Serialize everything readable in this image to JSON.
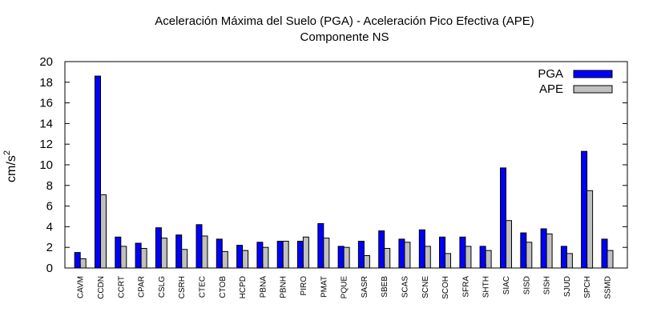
{
  "chart_data": {
    "type": "bar",
    "title": "Aceleración Máxima del Suelo (PGA) -  Aceleración Pico Efectiva (APE)",
    "subtitle": "Componente NS",
    "xlabel": "",
    "ylabel_base": "cm/s",
    "ylabel_exp": "2",
    "ylim": [
      0,
      20
    ],
    "yticks": [
      "0",
      "2",
      "4",
      "6",
      "8",
      "10",
      "12",
      "14",
      "16",
      "18",
      "20"
    ],
    "legend_position": "top-right",
    "categories": [
      "CAVM",
      "CCDN",
      "CCRT",
      "CPAR",
      "CSLG",
      "CSRH",
      "CTEC",
      "CTOB",
      "HCPD",
      "PBNA",
      "PBNH",
      "PIRO",
      "PMAT",
      "PQUE",
      "SASR",
      "SBEB",
      "SCAS",
      "SCNE",
      "SCOH",
      "SFRA",
      "SHTH",
      "SIAC",
      "SISD",
      "SISH",
      "SJUD",
      "SPCH",
      "SSMD"
    ],
    "series": [
      {
        "name": "PGA",
        "color": "#0000ff",
        "values": [
          1.5,
          18.6,
          3.0,
          2.4,
          3.9,
          3.2,
          4.2,
          2.8,
          2.2,
          2.5,
          2.6,
          2.6,
          4.3,
          2.1,
          2.6,
          3.6,
          2.8,
          3.7,
          3.0,
          3.0,
          2.1,
          9.7,
          3.4,
          3.8,
          2.1,
          11.3,
          2.8
        ]
      },
      {
        "name": "APE",
        "color": "#c0c0c0",
        "values": [
          0.9,
          7.1,
          2.1,
          1.9,
          2.9,
          1.8,
          3.1,
          1.6,
          1.7,
          2.0,
          2.6,
          3.0,
          2.9,
          2.0,
          1.2,
          1.9,
          2.5,
          2.1,
          1.4,
          2.1,
          1.7,
          4.6,
          2.5,
          3.3,
          1.4,
          7.5,
          1.7
        ]
      }
    ],
    "grid": false
  }
}
